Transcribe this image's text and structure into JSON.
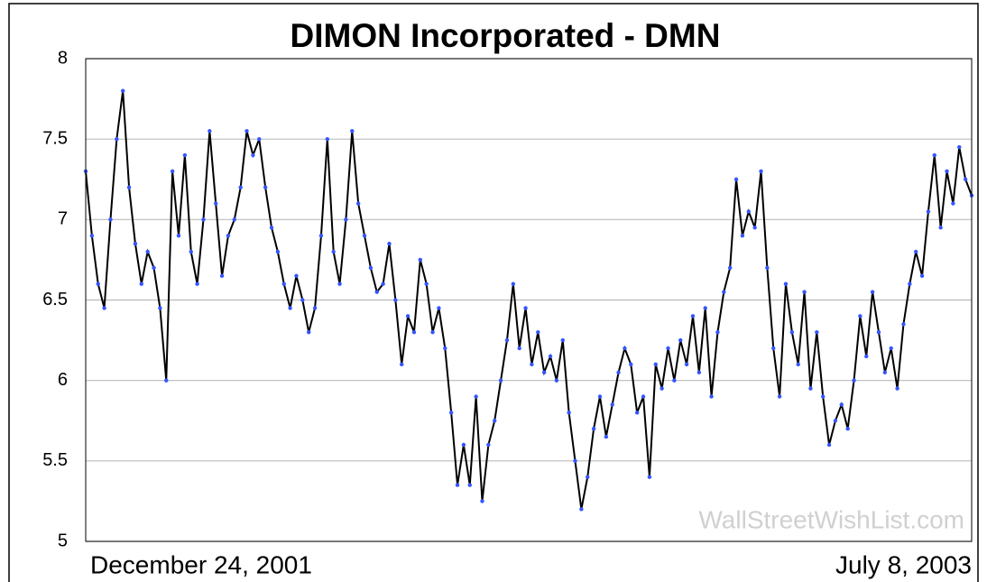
{
  "chart_data": {
    "type": "line",
    "title": "DIMON Incorporated - DMN",
    "annotation": "WallStreetWishList.com",
    "categories": [
      "December 24, 2001",
      null,
      null,
      null,
      null,
      null,
      null,
      null,
      null,
      null,
      null,
      null,
      null,
      null,
      null,
      null,
      null,
      null,
      null,
      null,
      null,
      null,
      null,
      null,
      null,
      null,
      null,
      null,
      null,
      null,
      null,
      null,
      null,
      null,
      null,
      null,
      null,
      null,
      null,
      null,
      null,
      null,
      null,
      null,
      null,
      null,
      null,
      null,
      null,
      null,
      null,
      null,
      null,
      null,
      null,
      null,
      null,
      null,
      null,
      null,
      null,
      null,
      null,
      null,
      null,
      null,
      null,
      null,
      null,
      null,
      null,
      null,
      null,
      null,
      null,
      null,
      null,
      null,
      null,
      null,
      null,
      null,
      null,
      null,
      null,
      null,
      null,
      null,
      null,
      null,
      null,
      null,
      null,
      null,
      null,
      null,
      null,
      null,
      null,
      null,
      null,
      null,
      null,
      null,
      null,
      null,
      null,
      null,
      null,
      null,
      null,
      null,
      null,
      null,
      null,
      null,
      null,
      null,
      null,
      null,
      null,
      null,
      null,
      null,
      null,
      null,
      null,
      null,
      null,
      null,
      null,
      null,
      null,
      null,
      null,
      null,
      null,
      null,
      null,
      null,
      null,
      null,
      null,
      "July 8, 2003"
    ],
    "series": [
      {
        "name": "DMN",
        "color": "#000000",
        "marker_color": "#3355ff",
        "values": [
          7.3,
          6.9,
          6.6,
          6.45,
          7.0,
          7.5,
          7.8,
          7.2,
          6.85,
          6.6,
          6.8,
          6.7,
          6.45,
          6.0,
          7.3,
          6.9,
          7.4,
          6.8,
          6.6,
          7.0,
          7.55,
          7.1,
          6.65,
          6.9,
          7.0,
          7.2,
          7.55,
          7.4,
          7.5,
          7.2,
          6.95,
          6.8,
          6.6,
          6.45,
          6.65,
          6.5,
          6.3,
          6.45,
          6.9,
          7.5,
          6.8,
          6.6,
          7.0,
          7.55,
          7.1,
          6.9,
          6.7,
          6.55,
          6.6,
          6.85,
          6.5,
          6.1,
          6.4,
          6.3,
          6.75,
          6.6,
          6.3,
          6.45,
          6.2,
          5.8,
          5.35,
          5.6,
          5.35,
          5.9,
          5.25,
          5.6,
          5.75,
          6.0,
          6.25,
          6.6,
          6.2,
          6.45,
          6.1,
          6.3,
          6.05,
          6.15,
          6.0,
          6.25,
          5.8,
          5.5,
          5.2,
          5.4,
          5.7,
          5.9,
          5.65,
          5.85,
          6.05,
          6.2,
          6.1,
          5.8,
          5.9,
          5.4,
          6.1,
          5.95,
          6.2,
          6.0,
          6.25,
          6.1,
          6.4,
          6.05,
          6.45,
          5.9,
          6.3,
          6.55,
          6.7,
          7.25,
          6.9,
          7.05,
          6.95,
          7.3,
          6.7,
          6.2,
          5.9,
          6.6,
          6.3,
          6.1,
          6.55,
          5.95,
          6.3,
          5.9,
          5.6,
          5.75,
          5.85,
          5.7,
          6.0,
          6.4,
          6.15,
          6.55,
          6.3,
          6.05,
          6.2,
          5.95,
          6.35,
          6.6,
          6.8,
          6.65,
          7.05,
          7.4,
          6.95,
          7.3,
          7.1,
          7.45,
          7.25,
          7.15
        ]
      }
    ],
    "ylim": [
      5,
      8
    ],
    "yticks": [
      5,
      5.5,
      6,
      6.5,
      7,
      7.5,
      8
    ],
    "grid": true
  }
}
